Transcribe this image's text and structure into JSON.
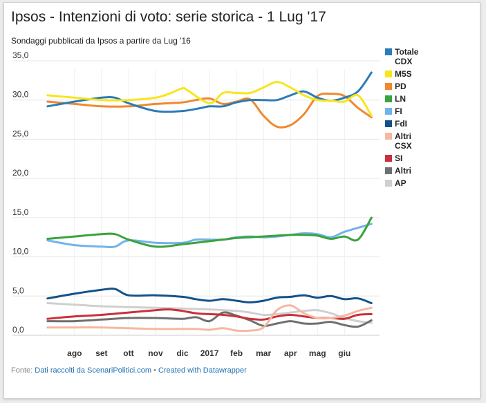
{
  "chart_data": {
    "type": "line",
    "title": "Ipsos - Intenzioni di voto: serie storica - 1 Lug '17",
    "subtitle": "Sondaggi pubblicati da Ipsos a partire da Lug '16",
    "xlabel": "",
    "ylabel": "",
    "ylim": [
      0,
      35
    ],
    "y_ticks": [
      "35,0",
      "30,0",
      "25,0",
      "20,0",
      "15,0",
      "10,0",
      "5,0",
      "0,0"
    ],
    "y_tick_values": [
      35,
      30,
      25,
      20,
      15,
      10,
      5,
      0
    ],
    "x_ticks": [
      "ago",
      "set",
      "ott",
      "nov",
      "dic",
      "2017",
      "feb",
      "mar",
      "apr",
      "mag",
      "giu"
    ],
    "x_tick_values": [
      1,
      2,
      3,
      4,
      5,
      6,
      7,
      8,
      9,
      10,
      11
    ],
    "xlim": [
      -0.2,
      12.3
    ],
    "grid": true,
    "legend_position": "right",
    "series": [
      {
        "name": "Totale CDX",
        "color": "#2b7bb9",
        "x": [
          0,
          1,
          2,
          2.5,
          3,
          4,
          5,
          5.7,
          6,
          6.5,
          7,
          7.5,
          8,
          8.5,
          9,
          9.5,
          10,
          10.5,
          11,
          11.5,
          12
        ],
        "values": [
          29.2,
          29.8,
          30.3,
          30.3,
          29.6,
          28.6,
          28.6,
          29.0,
          29.2,
          29.2,
          29.7,
          30.0,
          30.0,
          30.0,
          30.6,
          31.1,
          30.3,
          29.9,
          30.3,
          31.1,
          33.5
        ]
      },
      {
        "name": "M5S",
        "color": "#f7e61b",
        "x": [
          0,
          1,
          2,
          3,
          4,
          4.5,
          5,
          5.2,
          6,
          6.5,
          7,
          7.5,
          8,
          8.5,
          9,
          9.5,
          10,
          10.5,
          11,
          11.5,
          12
        ],
        "values": [
          30.6,
          30.3,
          30.0,
          30.0,
          30.3,
          30.8,
          31.5,
          31.2,
          29.6,
          30.9,
          30.9,
          30.9,
          31.6,
          32.3,
          31.6,
          30.6,
          30.0,
          29.9,
          29.8,
          30.6,
          28.0
        ]
      },
      {
        "name": "PD",
        "color": "#f0892d",
        "x": [
          0,
          1,
          2,
          3,
          4,
          5,
          5.5,
          6,
          6.5,
          7,
          7.5,
          8,
          8.5,
          9,
          9.5,
          10,
          10.5,
          11,
          11.5,
          12
        ],
        "values": [
          29.8,
          29.5,
          29.2,
          29.2,
          29.5,
          29.7,
          30.0,
          30.2,
          29.5,
          29.8,
          30.1,
          28.0,
          26.6,
          26.8,
          28.2,
          30.5,
          30.8,
          30.5,
          29.0,
          27.8
        ]
      },
      {
        "name": "LN",
        "color": "#3aa33c",
        "x": [
          0,
          1,
          2,
          2.5,
          3,
          4,
          5,
          6,
          6.5,
          7,
          7.5,
          8,
          8.5,
          9,
          9.5,
          10,
          10.5,
          11,
          11.5,
          12
        ],
        "values": [
          12.3,
          12.6,
          12.9,
          12.9,
          12.2,
          11.3,
          11.6,
          12.0,
          12.2,
          12.4,
          12.5,
          12.6,
          12.7,
          12.8,
          12.8,
          12.7,
          12.3,
          12.6,
          12.2,
          15.0
        ]
      },
      {
        "name": "FI",
        "color": "#73b2ea",
        "x": [
          0,
          1,
          2,
          2.5,
          3,
          4,
          5,
          5.5,
          6,
          6.5,
          7,
          7.5,
          8,
          8.5,
          9,
          9.5,
          10,
          10.5,
          11,
          11.5,
          12
        ],
        "values": [
          12.1,
          11.5,
          11.3,
          11.3,
          12.1,
          11.8,
          11.8,
          12.2,
          12.2,
          12.2,
          12.5,
          12.6,
          12.5,
          12.6,
          12.8,
          13.0,
          12.9,
          12.5,
          13.2,
          13.7,
          14.2
        ]
      },
      {
        "name": "FdI",
        "color": "#14518a",
        "x": [
          0,
          1,
          2,
          2.5,
          3,
          4,
          5,
          5.5,
          6,
          6.5,
          7,
          7.5,
          8,
          8.5,
          9,
          9.5,
          10,
          10.5,
          11,
          11.5,
          12
        ],
        "values": [
          4.7,
          5.3,
          5.8,
          5.9,
          5.1,
          5.1,
          4.9,
          4.6,
          4.4,
          4.6,
          4.4,
          4.2,
          4.4,
          4.8,
          4.9,
          5.1,
          4.8,
          5.0,
          4.6,
          4.7,
          4.1
        ]
      },
      {
        "name": "Altri CSX",
        "color": "#f6b7a0",
        "x": [
          0,
          1,
          2,
          3,
          4,
          5,
          5.5,
          6,
          6.5,
          7,
          7.5,
          8,
          8.5,
          9,
          9.5,
          10,
          10.5,
          11,
          11.5,
          12
        ],
        "values": [
          1.0,
          1.0,
          1.0,
          0.9,
          0.8,
          0.8,
          0.8,
          0.7,
          0.9,
          0.6,
          0.6,
          1.0,
          3.2,
          3.8,
          2.8,
          2.2,
          2.2,
          2.5,
          3.1,
          3.5
        ]
      },
      {
        "name": "SI",
        "color": "#c8313a",
        "x": [
          0,
          1,
          2,
          3,
          4,
          4.5,
          5,
          5.5,
          6,
          6.5,
          7,
          7.5,
          8,
          8.5,
          9,
          9.5,
          10,
          10.5,
          11,
          11.5,
          12
        ],
        "values": [
          2.1,
          2.4,
          2.6,
          2.9,
          3.2,
          3.3,
          3.1,
          2.8,
          2.7,
          2.6,
          2.4,
          2.1,
          2.0,
          2.4,
          2.6,
          2.4,
          2.2,
          2.2,
          2.1,
          2.6,
          2.7
        ]
      },
      {
        "name": "Altri",
        "color": "#6f6f6f",
        "x": [
          0,
          1,
          2,
          3,
          4,
          5,
          5.5,
          6,
          6.5,
          7,
          7.5,
          8,
          8.5,
          9,
          9.5,
          10,
          10.5,
          11,
          11.5,
          12
        ],
        "values": [
          1.8,
          1.8,
          2.0,
          2.2,
          2.2,
          2.1,
          2.3,
          1.8,
          2.9,
          2.5,
          1.9,
          1.2,
          1.5,
          1.8,
          1.5,
          1.5,
          1.7,
          1.3,
          1.1,
          1.9
        ]
      },
      {
        "name": "AP",
        "color": "#cfcfcf",
        "x": [
          0,
          1,
          2,
          3,
          4,
          5,
          6,
          7,
          7.5,
          8,
          8.5,
          9,
          9.5,
          10,
          10.5,
          11,
          11.5,
          12
        ],
        "values": [
          4.1,
          3.9,
          3.7,
          3.6,
          3.5,
          3.4,
          3.3,
          3.1,
          2.9,
          2.6,
          2.7,
          2.9,
          3.1,
          3.2,
          2.8,
          2.2,
          1.8,
          1.6
        ]
      }
    ]
  },
  "footer": {
    "prefix": "Fonte: ",
    "source": "Dati raccolti da ScenariPolitici.com",
    "separator": " • ",
    "credit": "Created with Datawrapper"
  }
}
